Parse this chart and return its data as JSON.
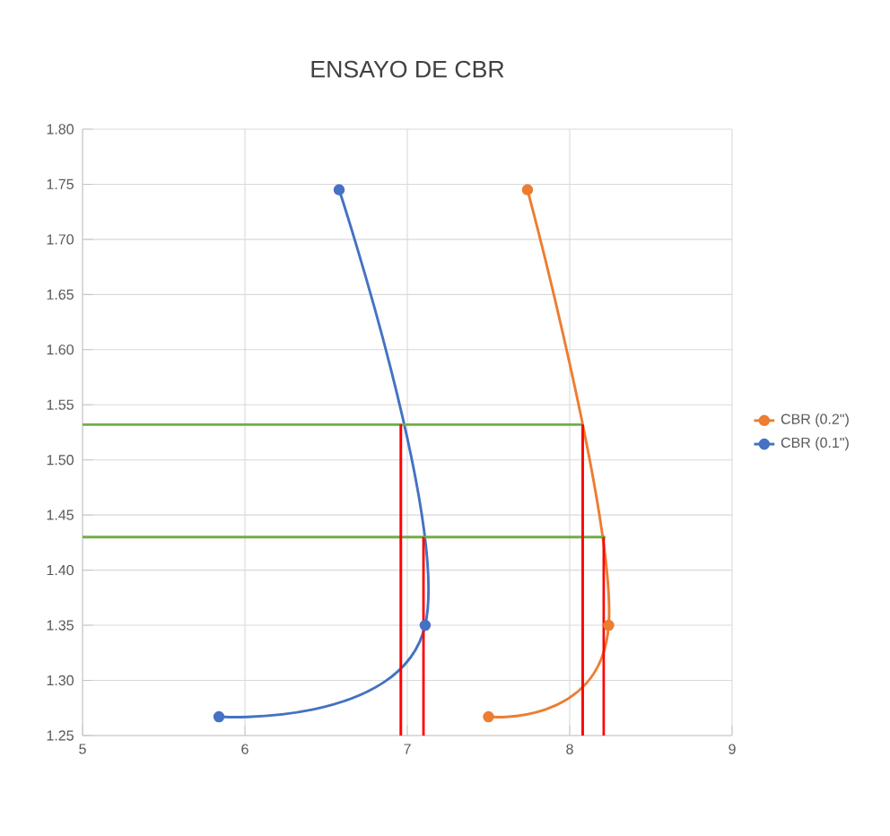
{
  "chart_data": {
    "type": "line",
    "title": "ENSAYO DE CBR",
    "xlim": [
      5,
      9
    ],
    "xticks": [
      5,
      6,
      7,
      8,
      9
    ],
    "ylim": [
      1.25,
      1.8
    ],
    "yticks": [
      {
        "value": 1.25,
        "label": "1.25"
      },
      {
        "value": 1.3,
        "label": "1.30"
      },
      {
        "value": 1.35,
        "label": "1.35"
      },
      {
        "value": 1.4,
        "label": "1.40"
      },
      {
        "value": 1.45,
        "label": "1.45"
      },
      {
        "value": 1.5,
        "label": "1.50"
      },
      {
        "value": 1.55,
        "label": "1.55"
      },
      {
        "value": 1.6,
        "label": "1.60"
      },
      {
        "value": 1.65,
        "label": "1.65"
      },
      {
        "value": 1.7,
        "label": "1.70"
      },
      {
        "value": 1.75,
        "label": "1.75"
      },
      {
        "value": 1.8,
        "label": "1.80"
      }
    ],
    "grid": true,
    "legend": "right",
    "marker": "circle",
    "line_style": "solid",
    "series": [
      {
        "name": "CBR (0.2\")",
        "color": "#ed7d31",
        "x": [
          7.5,
          8.24,
          7.74
        ],
        "values": [
          1.267,
          1.35,
          1.745
        ]
      },
      {
        "name": "CBR (0.1\")",
        "color": "#4472c4",
        "x": [
          5.84,
          7.11,
          6.58
        ],
        "values": [
          1.267,
          1.35,
          1.745
        ]
      },
      {
        "color": "#70ad47",
        "marker": "none",
        "x": [
          5,
          8.08
        ],
        "values": [
          1.532,
          1.532
        ]
      },
      {
        "color": "#70ad47",
        "marker": "none",
        "x": [
          5,
          8.22
        ],
        "values": [
          1.43,
          1.43
        ]
      },
      {
        "color": "#ff0000",
        "marker": "none",
        "x": [
          6.96,
          6.96
        ],
        "values": [
          1.25,
          1.532
        ]
      },
      {
        "color": "#ff0000",
        "marker": "none",
        "x": [
          7.1,
          7.1
        ],
        "values": [
          1.25,
          1.43
        ]
      },
      {
        "color": "#ff0000",
        "marker": "none",
        "x": [
          8.08,
          8.08
        ],
        "values": [
          1.25,
          1.532
        ]
      },
      {
        "color": "#ff0000",
        "marker": "none",
        "x": [
          8.21,
          8.21
        ],
        "values": [
          1.25,
          1.43
        ]
      }
    ]
  }
}
